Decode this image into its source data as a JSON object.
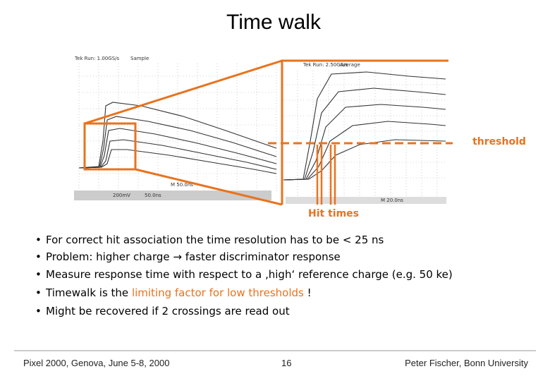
{
  "title": "Time walk",
  "scope_left": {
    "header": "Tek Run: 1.00GS/s",
    "mode": "Sample",
    "volts": "200mV",
    "time": "50.0ns",
    "timebase": "M 50.0ns"
  },
  "scope_right": {
    "header": "Tek Run: 2.50GS/s",
    "mode": "Average",
    "timebase": "M 20.0ns"
  },
  "threshold_label": "threshold",
  "hit_times_label": "Hit times",
  "bullets": [
    "For correct hit association the time resolution has to be < 25 ns",
    "Problem: higher charge → faster discriminator response",
    "Measure response time with respect to a ‚high‘ reference charge (e.g. 50 ke)",
    "Might be recovered if 2 crossings are read out"
  ],
  "bullet_4": [
    "Timewalk is the ",
    "limiting factor for low thresholds",
    " !"
  ],
  "footer": {
    "left": "Pixel 2000, Genova, June 5-8, 2000",
    "page": "16",
    "right": "Peter Fischer, Bonn University"
  }
}
